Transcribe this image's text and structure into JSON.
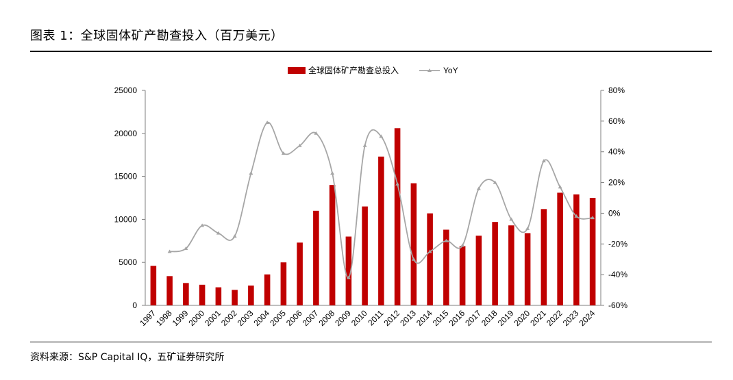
{
  "figure": {
    "title": "图表 1：全球固体矿产勘查投入（百万美元）",
    "source": "资料来源：S&P Capital IQ，五矿证券研究所"
  },
  "chart_data": {
    "type": "bar+line",
    "categories": [
      "1997",
      "1998",
      "1999",
      "2000",
      "2001",
      "2002",
      "2003",
      "2004",
      "2005",
      "2006",
      "2007",
      "2008",
      "2009",
      "2010",
      "2011",
      "2012",
      "2013",
      "2014",
      "2015",
      "2016",
      "2017",
      "2018",
      "2019",
      "2020",
      "2021",
      "2022",
      "2023",
      "2024"
    ],
    "series": [
      {
        "name": "全球固体矿产勘查总投入",
        "type": "bar",
        "axis": "left",
        "color": "#c00000",
        "values": [
          4600,
          3400,
          2600,
          2400,
          2100,
          1800,
          2300,
          3600,
          5000,
          7300,
          11000,
          14000,
          8000,
          11500,
          17300,
          20600,
          14200,
          10700,
          8800,
          6900,
          8100,
          9700,
          9300,
          8400,
          11200,
          13100,
          12900,
          12500
        ]
      },
      {
        "name": "YoY",
        "type": "line",
        "axis": "right",
        "color": "#a6a6a6",
        "values": [
          null,
          -25,
          -23,
          -8,
          -13,
          -15,
          26,
          59,
          39,
          44,
          52,
          26,
          -42,
          44,
          50,
          19,
          -30,
          -25,
          -18,
          -21,
          16,
          20,
          -4,
          -10,
          34,
          17,
          -2,
          -3
        ]
      }
    ],
    "y_left": {
      "min": 0,
      "max": 25000,
      "ticks": [
        "0",
        "5000",
        "10000",
        "15000",
        "20000",
        "25000"
      ]
    },
    "y_right": {
      "min": -60,
      "max": 80,
      "ticks": [
        "-60%",
        "-40%",
        "-20%",
        "0%",
        "20%",
        "40%",
        "60%",
        "80%"
      ]
    },
    "legend_position": "top-center",
    "grid": false
  }
}
